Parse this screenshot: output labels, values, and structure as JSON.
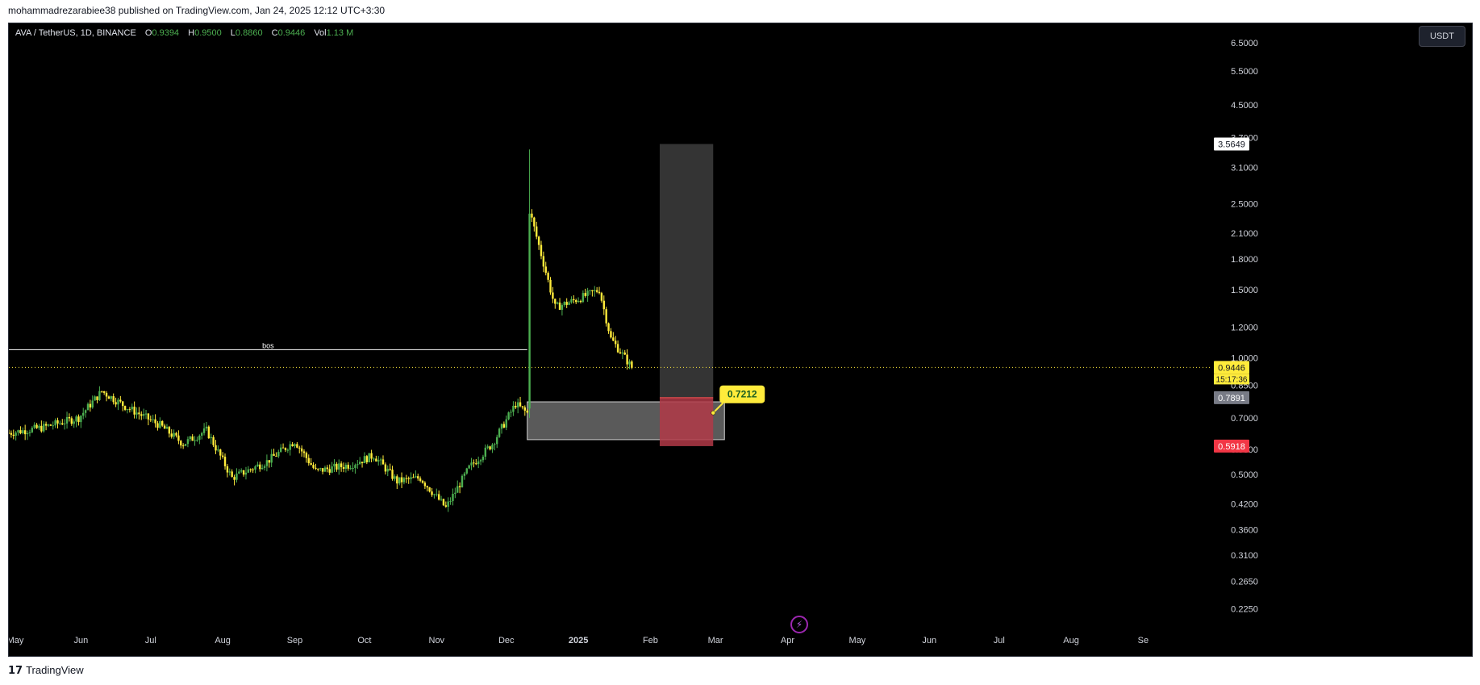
{
  "header": {
    "publish_line": "mohammadrezarabiee38 published on TradingView.com, Jan 24, 2025 12:12 UTC+3:30"
  },
  "legend": {
    "symbol": "AVA / TetherUS, 1D, BINANCE",
    "open_label": "O",
    "open": "0.9394",
    "high_label": "H",
    "high": "0.9500",
    "low_label": "L",
    "low": "0.8860",
    "close_label": "C",
    "close": "0.9446",
    "vol_label": "Vol",
    "vol": "1.13 M"
  },
  "currency_button": "USDT",
  "footer": {
    "logo_icon": "tradingview-logo-icon",
    "brand": "TradingView"
  },
  "flash_icon": "lightning-icon",
  "colors": {
    "background": "#000000",
    "candle_up": "#4caf50",
    "candle_down": "#ffeb3b",
    "price_tag": "#ffeb3b",
    "stop_zone": "#b23a48",
    "target_zone": "#3a3a3a",
    "stop_tag": "#f23645",
    "entry_tag": "#787b86"
  },
  "chart_data": {
    "type": "candlestick",
    "symbol": "AVA / TetherUS",
    "interval": "1D",
    "exchange": "BINANCE",
    "scale": "log",
    "ylim": [
      0.205,
      7.3
    ],
    "y_ticks": [
      "6.5000",
      "5.5000",
      "4.5000",
      "3.7000",
      "3.1000",
      "2.5000",
      "2.1000",
      "1.8000",
      "1.5000",
      "1.2000",
      "1.0000",
      "0.8500",
      "0.7000",
      "0.5800",
      "0.5000",
      "0.4200",
      "0.3600",
      "0.3100",
      "0.2650",
      "0.2250"
    ],
    "x_ticks": [
      "May",
      "Jun",
      "Jul",
      "Aug",
      "Sep",
      "Oct",
      "Nov",
      "Dec",
      "2025",
      "Feb",
      "Mar",
      "Apr",
      "May",
      "Jun",
      "Jul",
      "Aug",
      "Se"
    ],
    "x_range": [
      "2024-05-01",
      "2025-09-30"
    ],
    "price_path": [
      [
        "2024-05-01",
        0.64
      ],
      [
        "2024-05-15",
        0.66
      ],
      [
        "2024-05-31",
        0.7
      ],
      [
        "2024-06-10",
        0.82
      ],
      [
        "2024-06-20",
        0.75
      ],
      [
        "2024-07-05",
        0.67
      ],
      [
        "2024-07-15",
        0.6
      ],
      [
        "2024-07-25",
        0.65
      ],
      [
        "2024-08-05",
        0.49
      ],
      [
        "2024-08-20",
        0.54
      ],
      [
        "2024-09-01",
        0.61
      ],
      [
        "2024-09-10",
        0.51
      ],
      [
        "2024-09-25",
        0.53
      ],
      [
        "2024-10-05",
        0.56
      ],
      [
        "2024-10-15",
        0.48
      ],
      [
        "2024-10-25",
        0.49
      ],
      [
        "2024-11-05",
        0.41
      ],
      [
        "2024-11-15",
        0.52
      ],
      [
        "2024-11-25",
        0.6
      ],
      [
        "2024-12-05",
        0.76
      ],
      [
        "2024-12-10",
        0.72
      ],
      [
        "2024-12-11",
        2.4
      ],
      [
        "2024-12-15",
        1.95
      ],
      [
        "2024-12-22",
        1.35
      ],
      [
        "2025-01-01",
        1.42
      ],
      [
        "2025-01-10",
        1.5
      ],
      [
        "2025-01-15",
        1.12
      ],
      [
        "2025-01-20",
        1.02
      ],
      [
        "2025-01-24",
        0.9446
      ]
    ],
    "spike": {
      "date": "2024-12-11",
      "high": 3.45
    },
    "last_price": "0.9446",
    "countdown": "15:17:36",
    "bos_line": {
      "label": "bos",
      "price": 1.05,
      "start": "2024-05-01",
      "end": "2024-12-10"
    },
    "demand_zone": {
      "top": 0.77,
      "bottom": 0.615,
      "start": "2024-12-10",
      "end": "2025-02-28"
    },
    "position": {
      "entry": "0.7891",
      "stop": "0.5918",
      "target": "3.5649",
      "start": "2025-02-05",
      "end": "2025-02-28"
    },
    "callout": {
      "label": "0.7212",
      "price": 0.7212,
      "date": "2025-02-28"
    }
  }
}
